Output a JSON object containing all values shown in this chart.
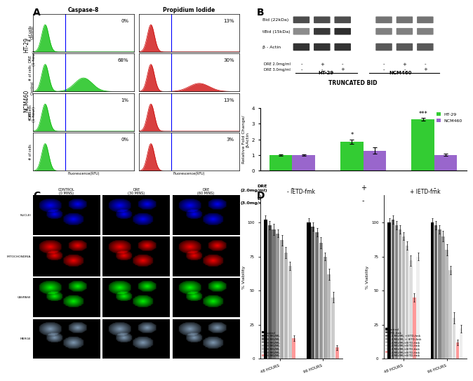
{
  "panel_A": {
    "col_labels": [
      "Caspase-8",
      "Propidium Iodide"
    ],
    "percentages": [
      [
        "0%",
        "13%"
      ],
      [
        "68%",
        "30%"
      ],
      [
        "1%",
        "13%"
      ],
      [
        "0%",
        "3%"
      ]
    ]
  },
  "panel_B_bar": {
    "title": "TRUNCATED BID",
    "ylabel": "Relative Fold Change/\nβ-Actin",
    "ylim": [
      0,
      4
    ],
    "yticks": [
      0,
      1,
      2,
      3,
      4
    ],
    "ht29_values": [
      1.0,
      1.85,
      3.3
    ],
    "ncm460_values": [
      1.0,
      1.28,
      1.02
    ],
    "ht29_errors": [
      0.05,
      0.12,
      0.1
    ],
    "ncm460_errors": [
      0.05,
      0.2,
      0.08
    ],
    "ht29_color": "#33cc33",
    "ncm460_color": "#9966cc",
    "significance": [
      "",
      "*",
      "***"
    ],
    "signs_row1": [
      "-",
      "+",
      "-"
    ],
    "signs_row2": [
      "-",
      "-",
      "+"
    ]
  },
  "panel_D_left": {
    "title": "- IETD-fmk",
    "ylabel": "% Viability",
    "timepoints": [
      "48 HOURS",
      "96 HOURS"
    ],
    "legend_labels": [
      "Control",
      "0.5 MG/ML",
      "1.0 MG/ML",
      "2.0 MG/ML",
      "3.0 MG/ML",
      "4.0 MG/ML",
      "5.0 MG/ML",
      "6.0 MG/ML"
    ],
    "colors": [
      "#000000",
      "#555555",
      "#777777",
      "#999999",
      "#aaaaaa",
      "#bbbbbb",
      "#cccccc",
      "#ff9999"
    ],
    "data_48h": [
      102,
      98,
      95,
      92,
      87,
      78,
      68,
      15
    ],
    "data_96h": [
      100,
      97,
      93,
      85,
      75,
      62,
      45,
      8
    ],
    "errors_48h": [
      3,
      3,
      4,
      3,
      4,
      4,
      3,
      2
    ],
    "errors_96h": [
      3,
      3,
      3,
      4,
      3,
      4,
      4,
      2
    ]
  },
  "panel_D_right": {
    "title": "+ IETD-fmk",
    "ylabel": "% Viability",
    "timepoints": [
      "48 HOURS",
      "96 HOURS"
    ],
    "legend_labels": [
      "Control",
      "IETD-fmk",
      "0.5 MG/ML +IETD-fmk",
      "1.0 MG/ML + IETD-fmk",
      "2.0 MG/ML+IETD-fmk",
      "3.0 MG/ML+IETD-fmk",
      "4.0 MG/ML+IETD-fmk",
      "5.0 MG/ML+IETD-fmk",
      "6.0 MG/ML+IETD-fmk"
    ],
    "colors": [
      "#000000",
      "#666666",
      "#888888",
      "#aaaaaa",
      "#bbbbbb",
      "#cccccc",
      "#dddddd",
      "#ff9999",
      "#eeeeee"
    ],
    "data_48h": [
      100,
      102,
      98,
      95,
      90,
      83,
      72,
      45,
      75
    ],
    "data_96h": [
      100,
      98,
      95,
      90,
      80,
      65,
      30,
      12,
      22
    ],
    "errors_48h": [
      3,
      3,
      3,
      3,
      3,
      3,
      4,
      3,
      3
    ],
    "errors_96h": [
      3,
      3,
      3,
      4,
      4,
      3,
      4,
      2,
      3
    ]
  },
  "bg_color": "#ffffff"
}
